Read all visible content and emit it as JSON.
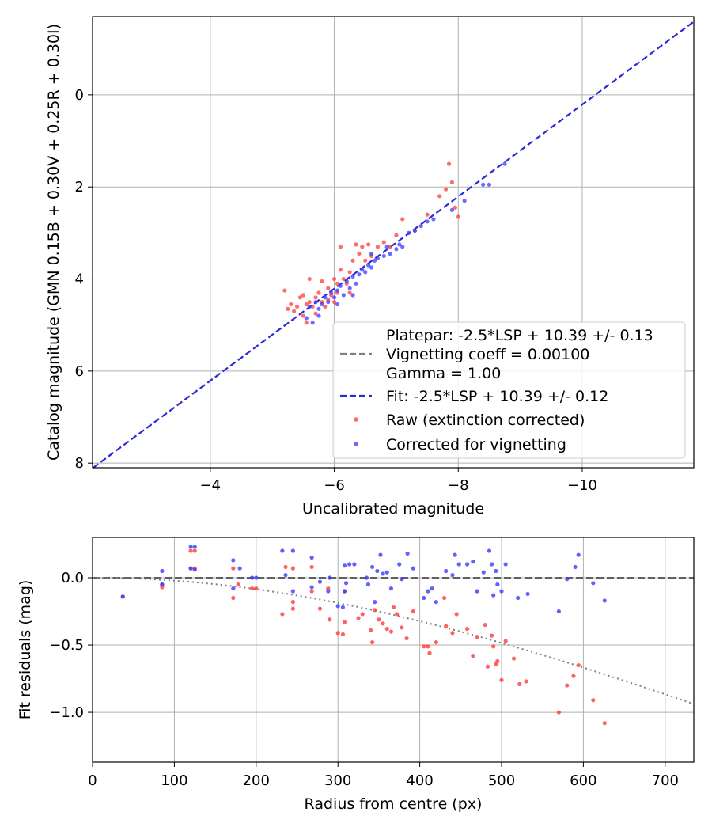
{
  "chart_data": [
    {
      "type": "scatter",
      "xlabel": "Uncalibrated magnitude",
      "ylabel": "Catalog magnitude (GMN 0.15B + 0.30V + 0.25R + 0.30I)",
      "xlim": [
        -2.1,
        -11.8
      ],
      "ylim": [
        8.1,
        -1.7
      ],
      "x_inverted": true,
      "y_inverted": true,
      "xticks": [
        -4,
        -6,
        -8,
        -10
      ],
      "xtick_labels": [
        "−4",
        "−6",
        "−8",
        "−10"
      ],
      "yticks": [
        0,
        2,
        4,
        6,
        8
      ],
      "ytick_labels": [
        "0",
        "2",
        "4",
        "6",
        "8"
      ],
      "grid": true,
      "legend_position": "lower-right",
      "legend": [
        {
          "label": "Platepar: -2.5*LSP + 10.39 +/- 0.13",
          "style": "none"
        },
        {
          "label": "Vignetting coeff = 0.00100",
          "style": "dash",
          "color": "#808080"
        },
        {
          "label": "Gamma = 1.00",
          "style": "none"
        },
        {
          "label": "Fit: -2.5*LSP + 10.39 +/- 0.12",
          "style": "dash",
          "color": "#2a2ad8"
        },
        {
          "label": "Raw (extinction corrected)",
          "style": "dot",
          "color": "#ff3b3b"
        },
        {
          "label": "Corrected for vignetting",
          "style": "dot",
          "color": "#3a3aff"
        }
      ],
      "lines": [
        {
          "name": "Platepar",
          "x": [
            -2.1,
            -11.8
          ],
          "y": [
            8.11,
            -1.59
          ],
          "color": "#808080"
        },
        {
          "name": "Fit",
          "x": [
            -2.1,
            -11.8
          ],
          "y": [
            8.11,
            -1.59
          ],
          "color": "#2a2ad8"
        }
      ],
      "series": [
        {
          "name": "Raw (extinction corrected)",
          "color": "#ff3b3b",
          "points": [
            [
              -5.2,
              4.25
            ],
            [
              -5.25,
              4.65
            ],
            [
              -5.3,
              4.55
            ],
            [
              -5.35,
              4.7
            ],
            [
              -5.4,
              4.6
            ],
            [
              -5.45,
              4.4
            ],
            [
              -5.5,
              4.35
            ],
            [
              -5.5,
              4.8
            ],
            [
              -5.55,
              4.55
            ],
            [
              -5.6,
              4.5
            ],
            [
              -5.6,
              4.0
            ],
            [
              -5.65,
              4.6
            ],
            [
              -5.7,
              4.4
            ],
            [
              -5.7,
              4.75
            ],
            [
              -5.75,
              4.3
            ],
            [
              -5.8,
              4.05
            ],
            [
              -5.8,
              4.5
            ],
            [
              -5.85,
              4.6
            ],
            [
              -5.9,
              4.2
            ],
            [
              -5.9,
              4.45
            ],
            [
              -5.95,
              4.35
            ],
            [
              -6.0,
              4.0
            ],
            [
              -6.0,
              4.5
            ],
            [
              -6.05,
              4.1
            ],
            [
              -6.05,
              4.3
            ],
            [
              -6.1,
              3.3
            ],
            [
              -6.1,
              3.8
            ],
            [
              -6.15,
              4.0
            ],
            [
              -6.2,
              4.1
            ],
            [
              -6.25,
              3.85
            ],
            [
              -6.3,
              3.6
            ],
            [
              -6.35,
              3.25
            ],
            [
              -6.4,
              3.45
            ],
            [
              -6.45,
              3.3
            ],
            [
              -6.5,
              3.6
            ],
            [
              -6.55,
              3.25
            ],
            [
              -6.6,
              3.5
            ],
            [
              -6.7,
              3.3
            ],
            [
              -6.8,
              3.2
            ],
            [
              -6.9,
              3.3
            ],
            [
              -7.0,
              3.05
            ],
            [
              -7.1,
              2.7
            ],
            [
              -7.3,
              2.95
            ],
            [
              -7.5,
              2.6
            ],
            [
              -7.7,
              2.2
            ],
            [
              -7.8,
              2.05
            ],
            [
              -7.85,
              1.5
            ],
            [
              -7.9,
              1.9
            ],
            [
              -7.95,
              2.45
            ],
            [
              -8.0,
              2.65
            ],
            [
              -6.25,
              4.3
            ],
            [
              -5.55,
              4.95
            ]
          ]
        },
        {
          "name": "Corrected for vignetting",
          "color": "#3a3aff",
          "points": [
            [
              -5.55,
              4.85
            ],
            [
              -5.6,
              4.6
            ],
            [
              -5.65,
              4.95
            ],
            [
              -5.7,
              4.5
            ],
            [
              -5.75,
              4.65
            ],
            [
              -5.8,
              4.55
            ],
            [
              -5.85,
              4.4
            ],
            [
              -5.9,
              4.5
            ],
            [
              -5.95,
              4.3
            ],
            [
              -6.0,
              4.4
            ],
            [
              -6.05,
              4.25
            ],
            [
              -6.1,
              4.15
            ],
            [
              -6.15,
              4.35
            ],
            [
              -6.2,
              4.05
            ],
            [
              -6.25,
              4.2
            ],
            [
              -6.3,
              3.95
            ],
            [
              -6.35,
              4.1
            ],
            [
              -6.4,
              3.9
            ],
            [
              -6.45,
              3.8
            ],
            [
              -6.5,
              3.85
            ],
            [
              -6.55,
              3.7
            ],
            [
              -6.6,
              3.75
            ],
            [
              -6.65,
              3.6
            ],
            [
              -6.7,
              3.55
            ],
            [
              -6.8,
              3.5
            ],
            [
              -6.85,
              3.3
            ],
            [
              -6.9,
              3.45
            ],
            [
              -7.0,
              3.35
            ],
            [
              -7.05,
              3.25
            ],
            [
              -7.1,
              3.3
            ],
            [
              -7.2,
              3.0
            ],
            [
              -7.3,
              2.95
            ],
            [
              -7.4,
              2.85
            ],
            [
              -7.5,
              2.75
            ],
            [
              -7.6,
              2.7
            ],
            [
              -7.9,
              2.5
            ],
            [
              -8.1,
              2.3
            ],
            [
              -8.4,
              1.95
            ],
            [
              -8.5,
              1.95
            ],
            [
              -8.75,
              1.5
            ],
            [
              -5.75,
              4.8
            ],
            [
              -6.05,
              4.55
            ],
            [
              -6.3,
              4.35
            ],
            [
              -6.6,
              3.45
            ]
          ]
        }
      ]
    },
    {
      "type": "scatter",
      "xlabel": "Radius from centre (px)",
      "ylabel": "Fit residuals (mag)",
      "xlim": [
        0,
        735
      ],
      "ylim": [
        -1.37,
        0.3
      ],
      "xticks": [
        0,
        100,
        200,
        300,
        400,
        500,
        600,
        700
      ],
      "xtick_labels": [
        "0",
        "100",
        "200",
        "300",
        "400",
        "500",
        "600",
        "700"
      ],
      "yticks": [
        0.0,
        -0.5,
        -1.0
      ],
      "ytick_labels": [
        "0.0",
        "−0.5",
        "−1.0"
      ],
      "grid": true,
      "lines": [
        {
          "name": "zero line",
          "style": "dash",
          "color": "#606060",
          "y": 0.0
        },
        {
          "name": "vignetting curve",
          "style": "dot",
          "color": "#808080",
          "coeff": 0.001
        }
      ],
      "series": [
        {
          "name": "Raw (extinction corrected)",
          "color": "#ff3b3b",
          "points": [
            [
              37,
              -0.14
            ],
            [
              85,
              -0.05
            ],
            [
              85,
              -0.07
            ],
            [
              120,
              0.07
            ],
            [
              120,
              0.2
            ],
            [
              125,
              0.2
            ],
            [
              125,
              0.07
            ],
            [
              172,
              0.07
            ],
            [
              172,
              -0.15
            ],
            [
              178,
              -0.05
            ],
            [
              195,
              -0.08
            ],
            [
              200,
              -0.08
            ],
            [
              232,
              -0.27
            ],
            [
              236,
              0.08
            ],
            [
              245,
              -0.23
            ],
            [
              245,
              0.07
            ],
            [
              268,
              0.08
            ],
            [
              268,
              -0.1
            ],
            [
              278,
              -0.23
            ],
            [
              288,
              -0.08
            ],
            [
              290,
              -0.31
            ],
            [
              300,
              -0.41
            ],
            [
              306,
              -0.42
            ],
            [
              308,
              -0.33
            ],
            [
              308,
              -0.1
            ],
            [
              325,
              -0.3
            ],
            [
              330,
              -0.27
            ],
            [
              340,
              -0.39
            ],
            [
              342,
              -0.48
            ],
            [
              345,
              -0.24
            ],
            [
              350,
              -0.31
            ],
            [
              355,
              -0.34
            ],
            [
              360,
              -0.38
            ],
            [
              365,
              -0.4
            ],
            [
              368,
              -0.22
            ],
            [
              372,
              -0.27
            ],
            [
              378,
              -0.37
            ],
            [
              384,
              -0.45
            ],
            [
              392,
              -0.25
            ],
            [
              405,
              -0.51
            ],
            [
              410,
              -0.51
            ],
            [
              412,
              -0.56
            ],
            [
              420,
              -0.48
            ],
            [
              430,
              -0.15
            ],
            [
              432,
              -0.36
            ],
            [
              440,
              -0.41
            ],
            [
              445,
              -0.27
            ],
            [
              458,
              -0.38
            ],
            [
              465,
              -0.58
            ],
            [
              470,
              -0.44
            ],
            [
              480,
              -0.35
            ],
            [
              483,
              -0.66
            ],
            [
              488,
              -0.43
            ],
            [
              490,
              -0.51
            ],
            [
              493,
              -0.64
            ],
            [
              495,
              -0.62
            ],
            [
              500,
              -0.76
            ],
            [
              505,
              -0.47
            ],
            [
              515,
              -0.6
            ],
            [
              522,
              -0.79
            ],
            [
              530,
              -0.77
            ],
            [
              570,
              -1.0
            ],
            [
              580,
              -0.8
            ],
            [
              588,
              -0.73
            ],
            [
              594,
              -0.65
            ],
            [
              612,
              -0.91
            ],
            [
              626,
              -1.08
            ],
            [
              245,
              -0.18
            ]
          ]
        },
        {
          "name": "Corrected for vignetting",
          "color": "#3a3aff",
          "points": [
            [
              37,
              -0.14
            ],
            [
              85,
              -0.05
            ],
            [
              85,
              0.05
            ],
            [
              120,
              0.07
            ],
            [
              120,
              0.23
            ],
            [
              125,
              0.23
            ],
            [
              125,
              0.06
            ],
            [
              172,
              -0.08
            ],
            [
              172,
              0.13
            ],
            [
              180,
              0.07
            ],
            [
              195,
              0.0
            ],
            [
              200,
              0.0
            ],
            [
              232,
              0.2
            ],
            [
              236,
              0.02
            ],
            [
              245,
              0.2
            ],
            [
              245,
              -0.1
            ],
            [
              268,
              0.15
            ],
            [
              268,
              -0.07
            ],
            [
              278,
              -0.03
            ],
            [
              288,
              -0.1
            ],
            [
              290,
              0.0
            ],
            [
              300,
              -0.21
            ],
            [
              306,
              -0.22
            ],
            [
              308,
              0.09
            ],
            [
              308,
              -0.1
            ],
            [
              310,
              -0.04
            ],
            [
              314,
              0.1
            ],
            [
              320,
              0.1
            ],
            [
              335,
              0.0
            ],
            [
              337,
              -0.05
            ],
            [
              342,
              0.08
            ],
            [
              345,
              -0.18
            ],
            [
              348,
              0.05
            ],
            [
              352,
              0.17
            ],
            [
              355,
              0.03
            ],
            [
              360,
              0.04
            ],
            [
              365,
              -0.08
            ],
            [
              375,
              0.1
            ],
            [
              378,
              -0.01
            ],
            [
              385,
              0.18
            ],
            [
              392,
              0.07
            ],
            [
              405,
              -0.15
            ],
            [
              410,
              -0.1
            ],
            [
              415,
              -0.08
            ],
            [
              420,
              -0.18
            ],
            [
              432,
              0.05
            ],
            [
              440,
              0.02
            ],
            [
              443,
              0.17
            ],
            [
              448,
              0.1
            ],
            [
              458,
              0.1
            ],
            [
              465,
              0.12
            ],
            [
              470,
              -0.1
            ],
            [
              478,
              0.04
            ],
            [
              485,
              0.2
            ],
            [
              488,
              0.1
            ],
            [
              490,
              -0.13
            ],
            [
              493,
              0.05
            ],
            [
              495,
              -0.05
            ],
            [
              500,
              -0.1
            ],
            [
              505,
              0.1
            ],
            [
              520,
              -0.15
            ],
            [
              532,
              -0.12
            ],
            [
              570,
              -0.25
            ],
            [
              580,
              -0.01
            ],
            [
              590,
              0.08
            ],
            [
              594,
              0.17
            ],
            [
              612,
              -0.04
            ],
            [
              626,
              -0.17
            ]
          ]
        }
      ]
    }
  ]
}
